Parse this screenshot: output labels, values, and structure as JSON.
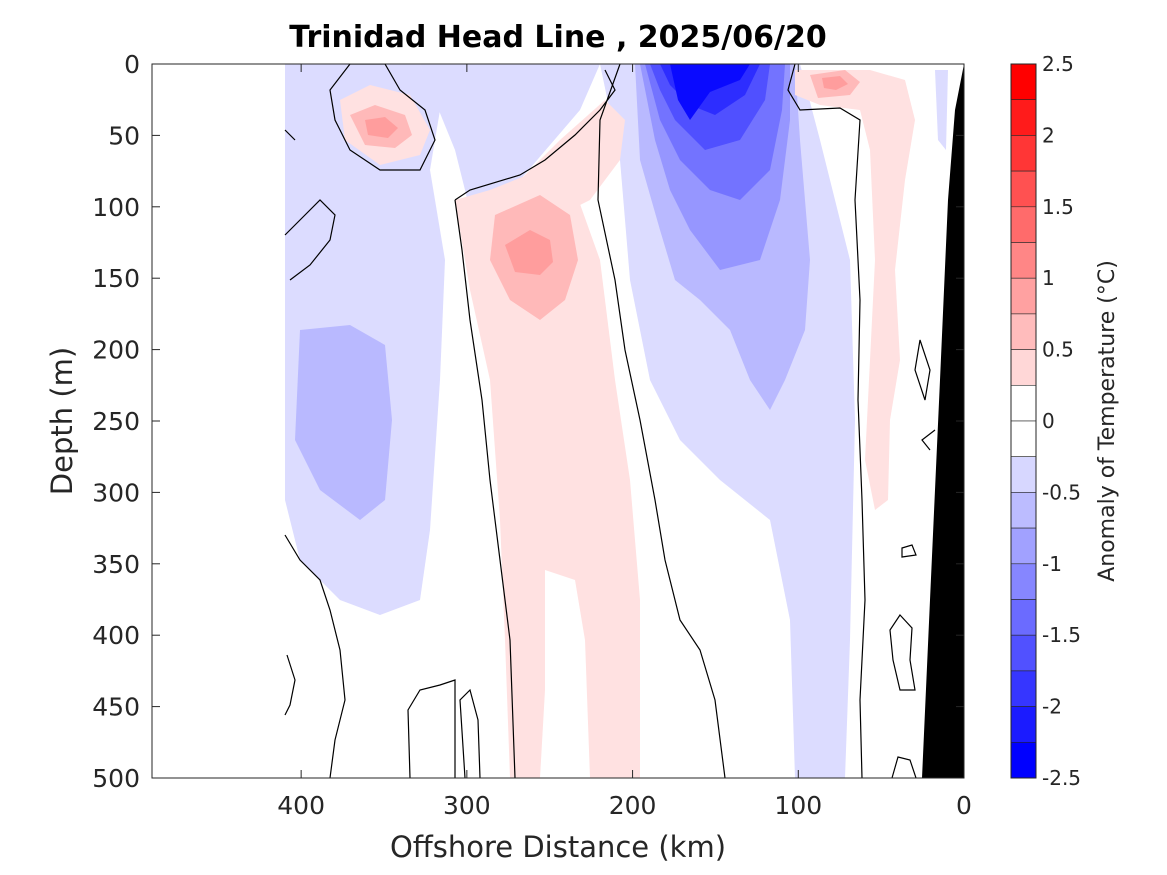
{
  "chart_data": {
    "type": "contour",
    "title": "Trinidad Head Line , 2025/06/20",
    "xlabel": "Offshore Distance (km)",
    "ylabel": "Depth (m)",
    "xlim": [
      490,
      0
    ],
    "ylim": [
      0,
      500
    ],
    "x_reversed": true,
    "y_reversed": true,
    "x_ticks": [
      400,
      300,
      200,
      100,
      0
    ],
    "y_ticks": [
      0,
      50,
      100,
      150,
      200,
      250,
      300,
      350,
      400,
      450,
      500
    ],
    "colorbar": {
      "label": "Anomaly of Temperature (°C)",
      "range": [
        -2.5,
        2.5
      ],
      "step": 0.25,
      "ticks": [
        2.5,
        2,
        1.5,
        1,
        0.5,
        0,
        -0.5,
        -1,
        -1.5,
        -2,
        -2.5
      ],
      "tick_labels": [
        "2.5",
        "2",
        "1.5",
        "1",
        "0.5",
        "0",
        "-0.5",
        "-1",
        "-1.5",
        "-2",
        "-2.5"
      ],
      "colormap": "blue-white-red"
    },
    "data_extent_km": [
      0,
      410
    ],
    "features": [
      {
        "kind": "cold_core",
        "center_km": 160,
        "depth_range_m": [
          0,
          150
        ],
        "min_anomaly": -2.25
      },
      {
        "kind": "cold_tongue",
        "km_range": [
          70,
          210
        ],
        "depth_range_m": [
          150,
          350
        ],
        "anomaly": -0.75
      },
      {
        "kind": "warm_column",
        "km_range": [
          195,
          290
        ],
        "depth_range_m": [
          60,
          500
        ],
        "anomaly": 0.25
      },
      {
        "kind": "warm_core",
        "center_km": 260,
        "depth_m": 140,
        "anomaly": 1.0
      },
      {
        "kind": "warm_patch",
        "center_km": 350,
        "depth_m": 45,
        "anomaly": 0.75
      },
      {
        "kind": "warm_patch",
        "center_km": 80,
        "depth_m": 15,
        "anomaly": 0.75
      },
      {
        "kind": "cold_patch",
        "center_km": 370,
        "depth_m": 270,
        "anomaly": -0.75
      },
      {
        "kind": "bathymetry",
        "color": "#000000"
      }
    ]
  },
  "colors": {
    "cold_strongest": "#0000ff",
    "warm_strongest": "#ff0000",
    "bathymetry": "#000000",
    "contour_line": "#000000"
  }
}
